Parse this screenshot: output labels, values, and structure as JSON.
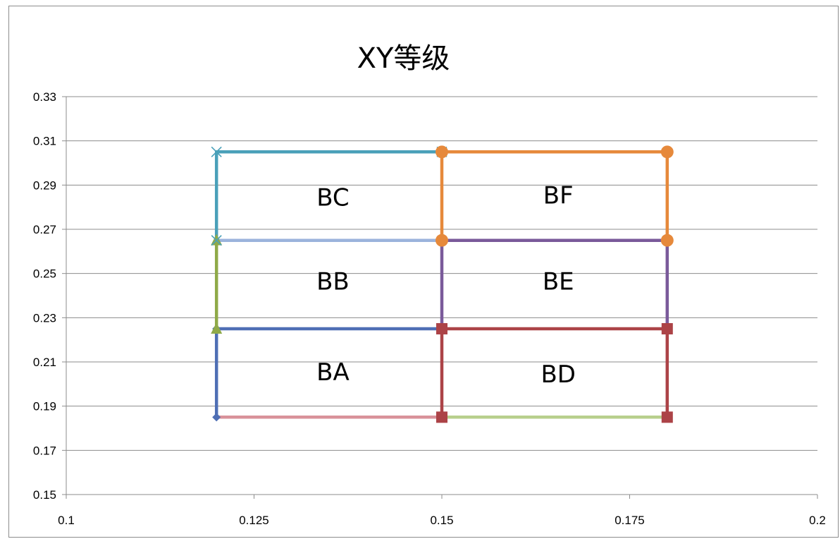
{
  "chart_data": {
    "type": "line",
    "title": "XY等级",
    "xlabel": "",
    "ylabel": "",
    "xlim": [
      0.1,
      0.2
    ],
    "ylim": [
      0.15,
      0.33
    ],
    "x_ticks": [
      "0.1",
      "0.125",
      "0.15",
      "0.175",
      "0.2"
    ],
    "y_ticks": [
      "0.15",
      "0.17",
      "0.19",
      "0.21",
      "0.23",
      "0.25",
      "0.27",
      "0.29",
      "0.31",
      "0.33"
    ],
    "grid": "horizontal",
    "legend": "none",
    "series": [
      {
        "color": "#4f6fb5",
        "marker": "diamond",
        "points": [
          [
            0.12,
            0.185
          ],
          [
            0.12,
            0.225
          ],
          [
            0.15,
            0.225
          ]
        ]
      },
      {
        "color": "#d9929a",
        "marker": "none",
        "points": [
          [
            0.12,
            0.185
          ],
          [
            0.15,
            0.185
          ]
        ]
      },
      {
        "color": "#8faa48",
        "marker": "triangle",
        "points": [
          [
            0.12,
            0.225
          ],
          [
            0.12,
            0.265
          ]
        ]
      },
      {
        "color": "#9bb3dc",
        "marker": "none",
        "points": [
          [
            0.12,
            0.265
          ],
          [
            0.15,
            0.265
          ]
        ]
      },
      {
        "color": "#4aa0b9",
        "marker": "x",
        "points": [
          [
            0.12,
            0.265
          ],
          [
            0.12,
            0.305
          ],
          [
            0.15,
            0.305
          ]
        ]
      },
      {
        "color": "#b8cf8c",
        "marker": "none",
        "points": [
          [
            0.15,
            0.185
          ],
          [
            0.18,
            0.185
          ]
        ]
      },
      {
        "color": "#ac4347",
        "marker": "square",
        "points": [
          [
            0.15,
            0.185
          ],
          [
            0.15,
            0.225
          ],
          [
            0.18,
            0.225
          ],
          [
            0.18,
            0.185
          ]
        ]
      },
      {
        "color": "#7a5a9a",
        "marker": "none",
        "points": [
          [
            0.15,
            0.225
          ],
          [
            0.15,
            0.265
          ],
          [
            0.18,
            0.265
          ],
          [
            0.18,
            0.225
          ]
        ]
      },
      {
        "color": "#e6893b",
        "marker": "circle",
        "points": [
          [
            0.15,
            0.265
          ],
          [
            0.15,
            0.305
          ],
          [
            0.18,
            0.305
          ],
          [
            0.18,
            0.265
          ]
        ]
      }
    ],
    "annotations": [
      {
        "text": "BC",
        "x": 0.1355,
        "y": 0.2845
      },
      {
        "text": "BF",
        "x": 0.1655,
        "y": 0.2855
      },
      {
        "text": "BB",
        "x": 0.1355,
        "y": 0.2465
      },
      {
        "text": "BE",
        "x": 0.1655,
        "y": 0.2465
      },
      {
        "text": "BA",
        "x": 0.1355,
        "y": 0.2055
      },
      {
        "text": "BD",
        "x": 0.1655,
        "y": 0.2045
      }
    ]
  }
}
